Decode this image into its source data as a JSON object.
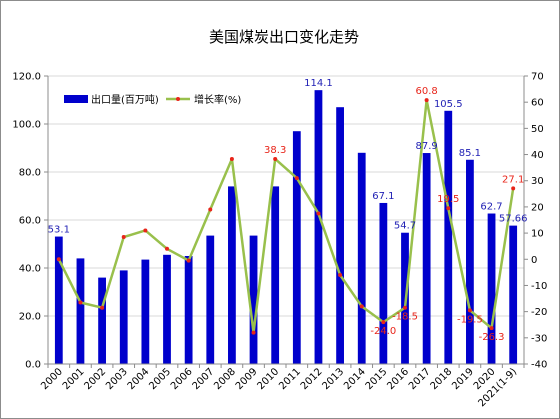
{
  "chart_data": {
    "type": "bar",
    "title": "美国煤炭出口变化走势",
    "categories": [
      "2000",
      "2001",
      "2002",
      "2003",
      "2004",
      "2005",
      "2006",
      "2007",
      "2008",
      "2009",
      "2010",
      "2011",
      "2012",
      "2013",
      "2014",
      "2015",
      "2016",
      "2017",
      "2018",
      "2019",
      "2020",
      "2021(1-9)"
    ],
    "series": [
      {
        "name": "出口量(百万吨)",
        "type": "bar",
        "axis": "left",
        "color": "#0000cc",
        "values": [
          53.1,
          44.0,
          36.0,
          39.0,
          43.5,
          45.5,
          45.0,
          53.5,
          74.0,
          53.5,
          74.0,
          97.0,
          114.1,
          107.0,
          88.0,
          67.1,
          54.7,
          87.9,
          105.5,
          85.1,
          62.7,
          57.66
        ]
      },
      {
        "name": "增长率(%)",
        "type": "line",
        "axis": "right",
        "color": "#99c04c",
        "marker_color": "#e8251a",
        "values": [
          0.0,
          -16.5,
          -18.5,
          8.5,
          11.0,
          4.0,
          -0.5,
          19.0,
          38.3,
          -28.0,
          38.3,
          31.0,
          17.5,
          -6.0,
          -18.0,
          -24.0,
          -18.5,
          60.8,
          19.5,
          -19.5,
          -26.3,
          27.1
        ]
      }
    ],
    "bar_labels": [
      {
        "index": 0,
        "text": "53.1"
      },
      {
        "index": 12,
        "text": "114.1"
      },
      {
        "index": 15,
        "text": "67.1"
      },
      {
        "index": 16,
        "text": "54.7"
      },
      {
        "index": 17,
        "text": "87.9"
      },
      {
        "index": 18,
        "text": "105.5"
      },
      {
        "index": 19,
        "text": "85.1"
      },
      {
        "index": 20,
        "text": "62.7"
      },
      {
        "index": 21,
        "text": "57.66"
      }
    ],
    "line_labels": [
      {
        "index": 10,
        "text": "38.3"
      },
      {
        "index": 15,
        "text": "-24.0"
      },
      {
        "index": 16,
        "text": "-18.5"
      },
      {
        "index": 17,
        "text": "60.8"
      },
      {
        "index": 18,
        "text": "19.5"
      },
      {
        "index": 19,
        "text": "-19.5"
      },
      {
        "index": 20,
        "text": "-26.3"
      },
      {
        "index": 21,
        "text": "27.1"
      }
    ],
    "ylim": [
      0,
      120
    ],
    "ytick_step": 20,
    "ytick_format_decimals": 1,
    "y2lim": [
      -40,
      70
    ],
    "y2tick_step": 10,
    "grid": true,
    "legend_placement": "top-left"
  }
}
